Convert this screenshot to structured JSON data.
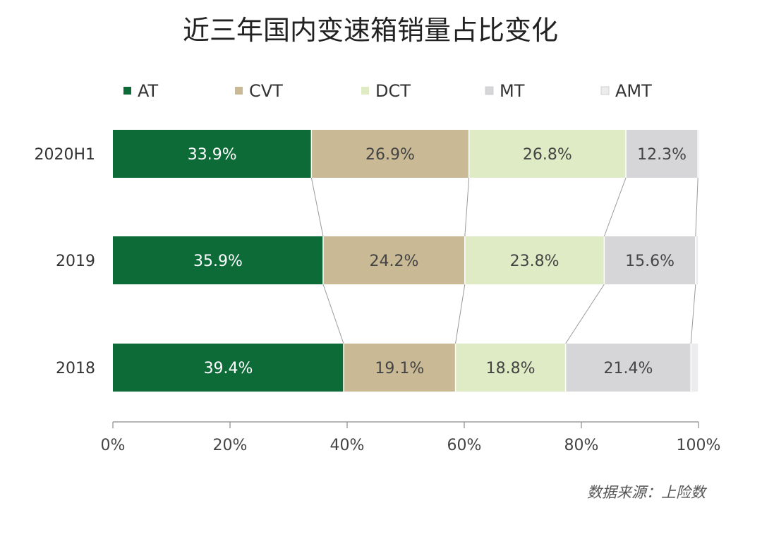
{
  "chart_data": {
    "type": "bar",
    "orientation": "horizontal",
    "stacked": true,
    "title": "近三年国内变速箱销量占比变化",
    "categories": [
      "2020H1",
      "2019",
      "2018"
    ],
    "series": [
      {
        "name": "AT",
        "color": "#0d6b38",
        "values": [
          33.9,
          35.9,
          39.4
        ],
        "labels": [
          "33.9%",
          "35.9%",
          "39.4%"
        ]
      },
      {
        "name": "CVT",
        "color": "#c9b994",
        "values": [
          26.9,
          24.2,
          19.1
        ],
        "labels": [
          "26.9%",
          "24.2%",
          "19.1%"
        ]
      },
      {
        "name": "DCT",
        "color": "#deebc4",
        "values": [
          26.8,
          23.8,
          18.8
        ],
        "labels": [
          "26.8%",
          "23.8%",
          "18.8%"
        ]
      },
      {
        "name": "MT",
        "color": "#d6d6d8",
        "values": [
          12.3,
          15.6,
          21.4
        ],
        "labels": [
          "12.3%",
          "15.6%",
          "21.4%"
        ]
      },
      {
        "name": "AMT",
        "color": "#ececee",
        "values": [
          0.1,
          0.5,
          1.3
        ],
        "labels": [
          "",
          "",
          ""
        ]
      }
    ],
    "x_ticks": [
      "0%",
      "20%",
      "40%",
      "60%",
      "80%",
      "100%"
    ],
    "xlim": [
      0,
      100
    ],
    "legend_position": "top",
    "grid": false,
    "connector_lines": true
  },
  "source": "数据来源：上险数"
}
